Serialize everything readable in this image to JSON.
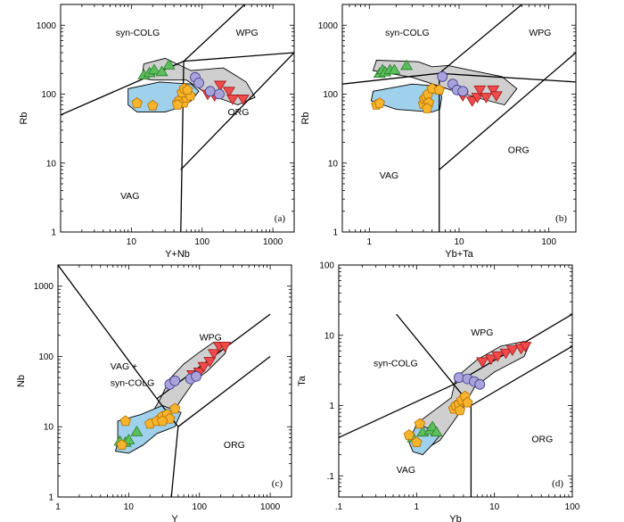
{
  "colors": {
    "syn_colg_triangles": "#5cbf5c",
    "org_inverted_triangles": "#f04a4a",
    "circles": "#a9a3dc",
    "pentagons": "#f7b42c",
    "gray_envelope": "#cfcfcf",
    "blue_envelope": "#9fd0ec"
  },
  "chart_data": [
    {
      "panel": "(a)",
      "type": "scatter",
      "xlabel": "Y+Nb",
      "ylabel": "Rb",
      "xscale": "log",
      "yscale": "log",
      "xlim": [
        1,
        2000
      ],
      "ylim": [
        1,
        2000
      ],
      "xticks": [
        {
          "v": 10,
          "label": "10"
        },
        {
          "v": 100,
          "label": "100"
        },
        {
          "v": 1000,
          "label": "1000"
        }
      ],
      "yticks": [
        {
          "v": 1,
          "label": "1"
        },
        {
          "v": 10,
          "label": "10"
        },
        {
          "v": 100,
          "label": "100"
        },
        {
          "v": 1000,
          "label": "1000"
        }
      ],
      "fields": [
        {
          "label": "syn-COLG",
          "x": 6,
          "y": 700
        },
        {
          "label": "WPG",
          "x": 300,
          "y": 700
        },
        {
          "label": "ORG",
          "x": 230,
          "y": 50
        },
        {
          "label": "VAG",
          "x": 7,
          "y": 3
        }
      ],
      "lines": [
        [
          [
            1,
            50
          ],
          [
            55,
            300
          ]
        ],
        [
          [
            55,
            300
          ],
          [
            400,
            2000
          ]
        ],
        [
          [
            55,
            300
          ],
          [
            2000,
            400
          ]
        ],
        [
          [
            55,
            300
          ],
          [
            50,
            1
          ]
        ],
        [
          [
            50,
            8
          ],
          [
            2000,
            400
          ]
        ]
      ],
      "envelopes": [
        {
          "kind": "gray",
          "path": [
            [
              14,
              170
            ],
            [
              15,
              275
            ],
            [
              30,
              330
            ],
            [
              70,
              220
            ],
            [
              200,
              240
            ],
            [
              420,
              150
            ],
            [
              560,
              90
            ],
            [
              320,
              70
            ],
            [
              120,
              100
            ],
            [
              60,
              160
            ],
            [
              20,
              160
            ],
            [
              14,
              170
            ]
          ]
        },
        {
          "kind": "blue",
          "path": [
            [
              9,
              70
            ],
            [
              9,
              120
            ],
            [
              25,
              150
            ],
            [
              70,
              140
            ],
            [
              90,
              110
            ],
            [
              70,
              80
            ],
            [
              50,
              65
            ],
            [
              30,
              55
            ],
            [
              12,
              55
            ],
            [
              9,
              70
            ]
          ]
        }
      ],
      "series": [
        {
          "marker": "tri",
          "x": [
            15,
            18,
            21,
            27,
            34
          ],
          "y": [
            190,
            205,
            225,
            212,
            265
          ]
        },
        {
          "marker": "inv",
          "x": [
            120,
            150,
            180,
            240,
            270,
            380
          ],
          "y": [
            100,
            95,
            135,
            110,
            85,
            85
          ]
        },
        {
          "marker": "cir",
          "x": [
            80,
            90,
            130,
            175
          ],
          "y": [
            175,
            145,
            110,
            100
          ]
        },
        {
          "marker": "pen",
          "x": [
            12,
            20,
            45,
            48,
            55,
            60,
            68,
            52,
            56,
            45,
            62
          ],
          "y": [
            74,
            68,
            75,
            82,
            75,
            88,
            95,
            105,
            120,
            70,
            115
          ]
        }
      ],
      "label_pos": "bottom-right"
    },
    {
      "panel": "(b)",
      "type": "scatter",
      "xlabel": "Yb+Ta",
      "ylabel": "Rb",
      "xscale": "log",
      "yscale": "log",
      "xlim": [
        0.5,
        200
      ],
      "ylim": [
        1,
        2000
      ],
      "xticks": [
        {
          "v": 1,
          "label": "1"
        },
        {
          "v": 10,
          "label": "10"
        },
        {
          "v": 100,
          "label": "100"
        }
      ],
      "yticks": [
        {
          "v": 1,
          "label": "1"
        },
        {
          "v": 10,
          "label": "10"
        },
        {
          "v": 100,
          "label": "100"
        },
        {
          "v": 1000,
          "label": "1000"
        }
      ],
      "fields": [
        {
          "label": "syn-COLG",
          "x": 1.5,
          "y": 700
        },
        {
          "label": "WPG",
          "x": 60,
          "y": 700
        },
        {
          "label": "ORG",
          "x": 35,
          "y": 14
        },
        {
          "label": "VAG",
          "x": 1.3,
          "y": 6
        }
      ],
      "lines": [
        [
          [
            0.5,
            140
          ],
          [
            6,
            200
          ]
        ],
        [
          [
            6,
            200
          ],
          [
            50,
            2000
          ]
        ],
        [
          [
            6,
            200
          ],
          [
            200,
            150
          ]
        ],
        [
          [
            6,
            200
          ],
          [
            6,
            1
          ]
        ],
        [
          [
            6,
            8
          ],
          [
            200,
            400
          ]
        ]
      ],
      "envelopes": [
        {
          "kind": "gray",
          "path": [
            [
              1.1,
              220
            ],
            [
              1.2,
              310
            ],
            [
              3.5,
              295
            ],
            [
              5,
              250
            ],
            [
              7.5,
              260
            ],
            [
              14,
              220
            ],
            [
              30,
              180
            ],
            [
              44,
              120
            ],
            [
              32,
              70
            ],
            [
              18,
              85
            ],
            [
              9,
              110
            ],
            [
              3,
              175
            ],
            [
              1.1,
              220
            ]
          ]
        },
        {
          "kind": "blue",
          "path": [
            [
              1.05,
              80
            ],
            [
              1.1,
              110
            ],
            [
              3,
              140
            ],
            [
              6,
              130
            ],
            [
              6.4,
              90
            ],
            [
              6.1,
              60
            ],
            [
              5,
              55
            ],
            [
              2,
              60
            ],
            [
              1.05,
              80
            ]
          ]
        }
      ],
      "series": [
        {
          "marker": "tri",
          "x": [
            1.3,
            1.4,
            1.5,
            1.7,
            1.9,
            2.6
          ],
          "y": [
            200,
            225,
            210,
            225,
            225,
            260
          ]
        },
        {
          "marker": "inv",
          "x": [
            11,
            14,
            16,
            17,
            20,
            24,
            26
          ],
          "y": [
            95,
            80,
            90,
            115,
            90,
            115,
            95
          ]
        },
        {
          "marker": "cir",
          "x": [
            6.5,
            8.5,
            9.5,
            11
          ],
          "y": [
            180,
            140,
            115,
            110
          ]
        },
        {
          "marker": "pen",
          "x": [
            1.2,
            1.3,
            4,
            4.1,
            4.3,
            4.5,
            5,
            6,
            4.6,
            4.4
          ],
          "y": [
            70,
            74,
            72,
            85,
            90,
            100,
            120,
            115,
            75,
            62
          ]
        }
      ],
      "label_pos": "bottom-right"
    },
    {
      "panel": "(c)",
      "type": "scatter",
      "xlabel": "Y",
      "ylabel": "Nb",
      "xscale": "log",
      "yscale": "log",
      "xlim": [
        1,
        2000
      ],
      "ylim": [
        1,
        2000
      ],
      "xticks": [
        {
          "v": 1,
          "label": "1"
        },
        {
          "v": 10,
          "label": "10"
        },
        {
          "v": 100,
          "label": "100"
        },
        {
          "v": 1000,
          "label": "1000"
        }
      ],
      "yticks": [
        {
          "v": 1,
          "label": "1"
        },
        {
          "v": 10,
          "label": "10"
        },
        {
          "v": 100,
          "label": "100"
        },
        {
          "v": 1000,
          "label": "1000"
        }
      ],
      "fields": [
        {
          "label": "WPG",
          "x": 100,
          "y": 170
        },
        {
          "label": "VAG +",
          "x": 5.5,
          "y": 65
        },
        {
          "label": "syn-COLG",
          "x": 5.5,
          "y": 38
        },
        {
          "label": "ORG",
          "x": 220,
          "y": 5
        }
      ],
      "lines": [
        [
          [
            1,
            2000
          ],
          [
            25,
            25
          ]
        ],
        [
          [
            25,
            25
          ],
          [
            1000,
            400
          ]
        ],
        [
          [
            25,
            25
          ],
          [
            50,
            10
          ]
        ],
        [
          [
            50,
            10
          ],
          [
            1000,
            100
          ]
        ],
        [
          [
            50,
            10
          ],
          [
            40,
            1
          ]
        ]
      ],
      "envelopes": [
        {
          "kind": "gray",
          "path": [
            [
              20,
              14
            ],
            [
              28,
              25
            ],
            [
              38,
              48
            ],
            [
              60,
              78
            ],
            [
              100,
              115
            ],
            [
              160,
              160
            ],
            [
              260,
              160
            ],
            [
              230,
              110
            ],
            [
              130,
              62
            ],
            [
              85,
              45
            ],
            [
              55,
              24
            ],
            [
              35,
              12
            ],
            [
              20,
              14
            ]
          ]
        },
        {
          "kind": "blue",
          "path": [
            [
              7,
              6
            ],
            [
              7,
              12
            ],
            [
              15,
              15
            ],
            [
              30,
              20
            ],
            [
              55,
              16
            ],
            [
              45,
              10
            ],
            [
              25,
              8
            ],
            [
              16,
              5.5
            ],
            [
              10,
              4.2
            ],
            [
              6.5,
              4.5
            ],
            [
              7,
              6
            ]
          ]
        }
      ],
      "series": [
        {
          "marker": "tri",
          "x": [
            7.5,
            9,
            10,
            13
          ],
          "y": [
            6.2,
            6,
            6.5,
            8.5
          ]
        },
        {
          "marker": "inv",
          "x": [
            80,
            100,
            115,
            140,
            160,
            190,
            230
          ],
          "y": [
            55,
            60,
            72,
            85,
            110,
            140,
            140
          ]
        },
        {
          "marker": "cir",
          "x": [
            38,
            45,
            75,
            90
          ],
          "y": [
            40,
            45,
            48,
            52
          ]
        },
        {
          "marker": "pen",
          "x": [
            8,
            9,
            20,
            25,
            30,
            35,
            45,
            38,
            30
          ],
          "y": [
            5.5,
            12,
            11,
            12,
            14,
            15,
            18,
            13,
            12
          ]
        }
      ],
      "label_pos": "bottom-right"
    },
    {
      "panel": "(d)",
      "type": "scatter",
      "xlabel": "Yb",
      "ylabel": "Ta",
      "xscale": "log",
      "yscale": "log",
      "xlim": [
        0.1,
        100
      ],
      "ylim": [
        0.05,
        100
      ],
      "xticks": [
        {
          "v": 0.1,
          "label": ".1"
        },
        {
          "v": 1,
          "label": "1"
        },
        {
          "v": 10,
          "label": "10"
        },
        {
          "v": 100,
          "label": "100"
        }
      ],
      "yticks": [
        {
          "v": 0.1,
          "label": ".1"
        },
        {
          "v": 1,
          "label": "1"
        },
        {
          "v": 10,
          "label": "10"
        },
        {
          "v": 100,
          "label": "100"
        }
      ],
      "fields": [
        {
          "label": "WPG",
          "x": 5,
          "y": 10
        },
        {
          "label": "syn-COLG",
          "x": 0.28,
          "y": 3.6
        },
        {
          "label": "ORG",
          "x": 30,
          "y": 0.3
        },
        {
          "label": "VAG",
          "x": 0.55,
          "y": 0.11
        }
      ],
      "lines": [
        [
          [
            0.1,
            0.35
          ],
          [
            3,
            2
          ]
        ],
        [
          [
            3,
            2
          ],
          [
            100,
            20
          ]
        ],
        [
          [
            3,
            2
          ],
          [
            0.55,
            20
          ]
        ],
        [
          [
            3,
            2
          ],
          [
            5,
            1
          ]
        ],
        [
          [
            5,
            1
          ],
          [
            100,
            7
          ]
        ],
        [
          [
            5,
            1
          ],
          [
            5,
            0.05
          ]
        ]
      ],
      "envelopes": [
        {
          "kind": "gray",
          "path": [
            [
              0.85,
              0.3
            ],
            [
              1.1,
              0.6
            ],
            [
              2.8,
              1.3
            ],
            [
              3.2,
              2.5
            ],
            [
              6,
              4.5
            ],
            [
              12,
              7
            ],
            [
              24,
              8.2
            ],
            [
              28,
              7.3
            ],
            [
              24,
              5
            ],
            [
              10,
              3
            ],
            [
              5.5,
              1.8
            ],
            [
              4,
              0.95
            ],
            [
              3,
              0.6
            ],
            [
              2,
              0.32
            ],
            [
              1.3,
              0.24
            ],
            [
              0.85,
              0.3
            ]
          ]
        },
        {
          "kind": "blue",
          "path": [
            [
              0.8,
              0.3
            ],
            [
              1,
              0.55
            ],
            [
              1.6,
              0.45
            ],
            [
              2,
              0.38
            ],
            [
              1.6,
              0.28
            ],
            [
              1.2,
              0.2
            ],
            [
              0.9,
              0.22
            ],
            [
              0.8,
              0.3
            ]
          ]
        }
      ],
      "series": [
        {
          "marker": "tri",
          "x": [
            0.9,
            1.2,
            1.5,
            1.6,
            1.8
          ],
          "y": [
            0.35,
            0.42,
            0.45,
            0.5,
            0.42
          ]
        },
        {
          "marker": "inv",
          "x": [
            7,
            9,
            11,
            14,
            17,
            22,
            25
          ],
          "y": [
            4.2,
            4.6,
            5.1,
            5.6,
            6.2,
            6.5,
            7
          ]
        },
        {
          "marker": "cir",
          "x": [
            3.5,
            4.5,
            5.5,
            6.5
          ],
          "y": [
            2.5,
            2.4,
            2.2,
            2
          ]
        },
        {
          "marker": "pen",
          "x": [
            0.8,
            1,
            1.1,
            3,
            3.2,
            3.5,
            3.8,
            4.2,
            4.5,
            3.6
          ],
          "y": [
            0.38,
            0.3,
            0.55,
            0.9,
            1,
            1.05,
            1.2,
            1.35,
            1.1,
            0.85
          ]
        }
      ],
      "label_pos": "bottom-right"
    }
  ]
}
